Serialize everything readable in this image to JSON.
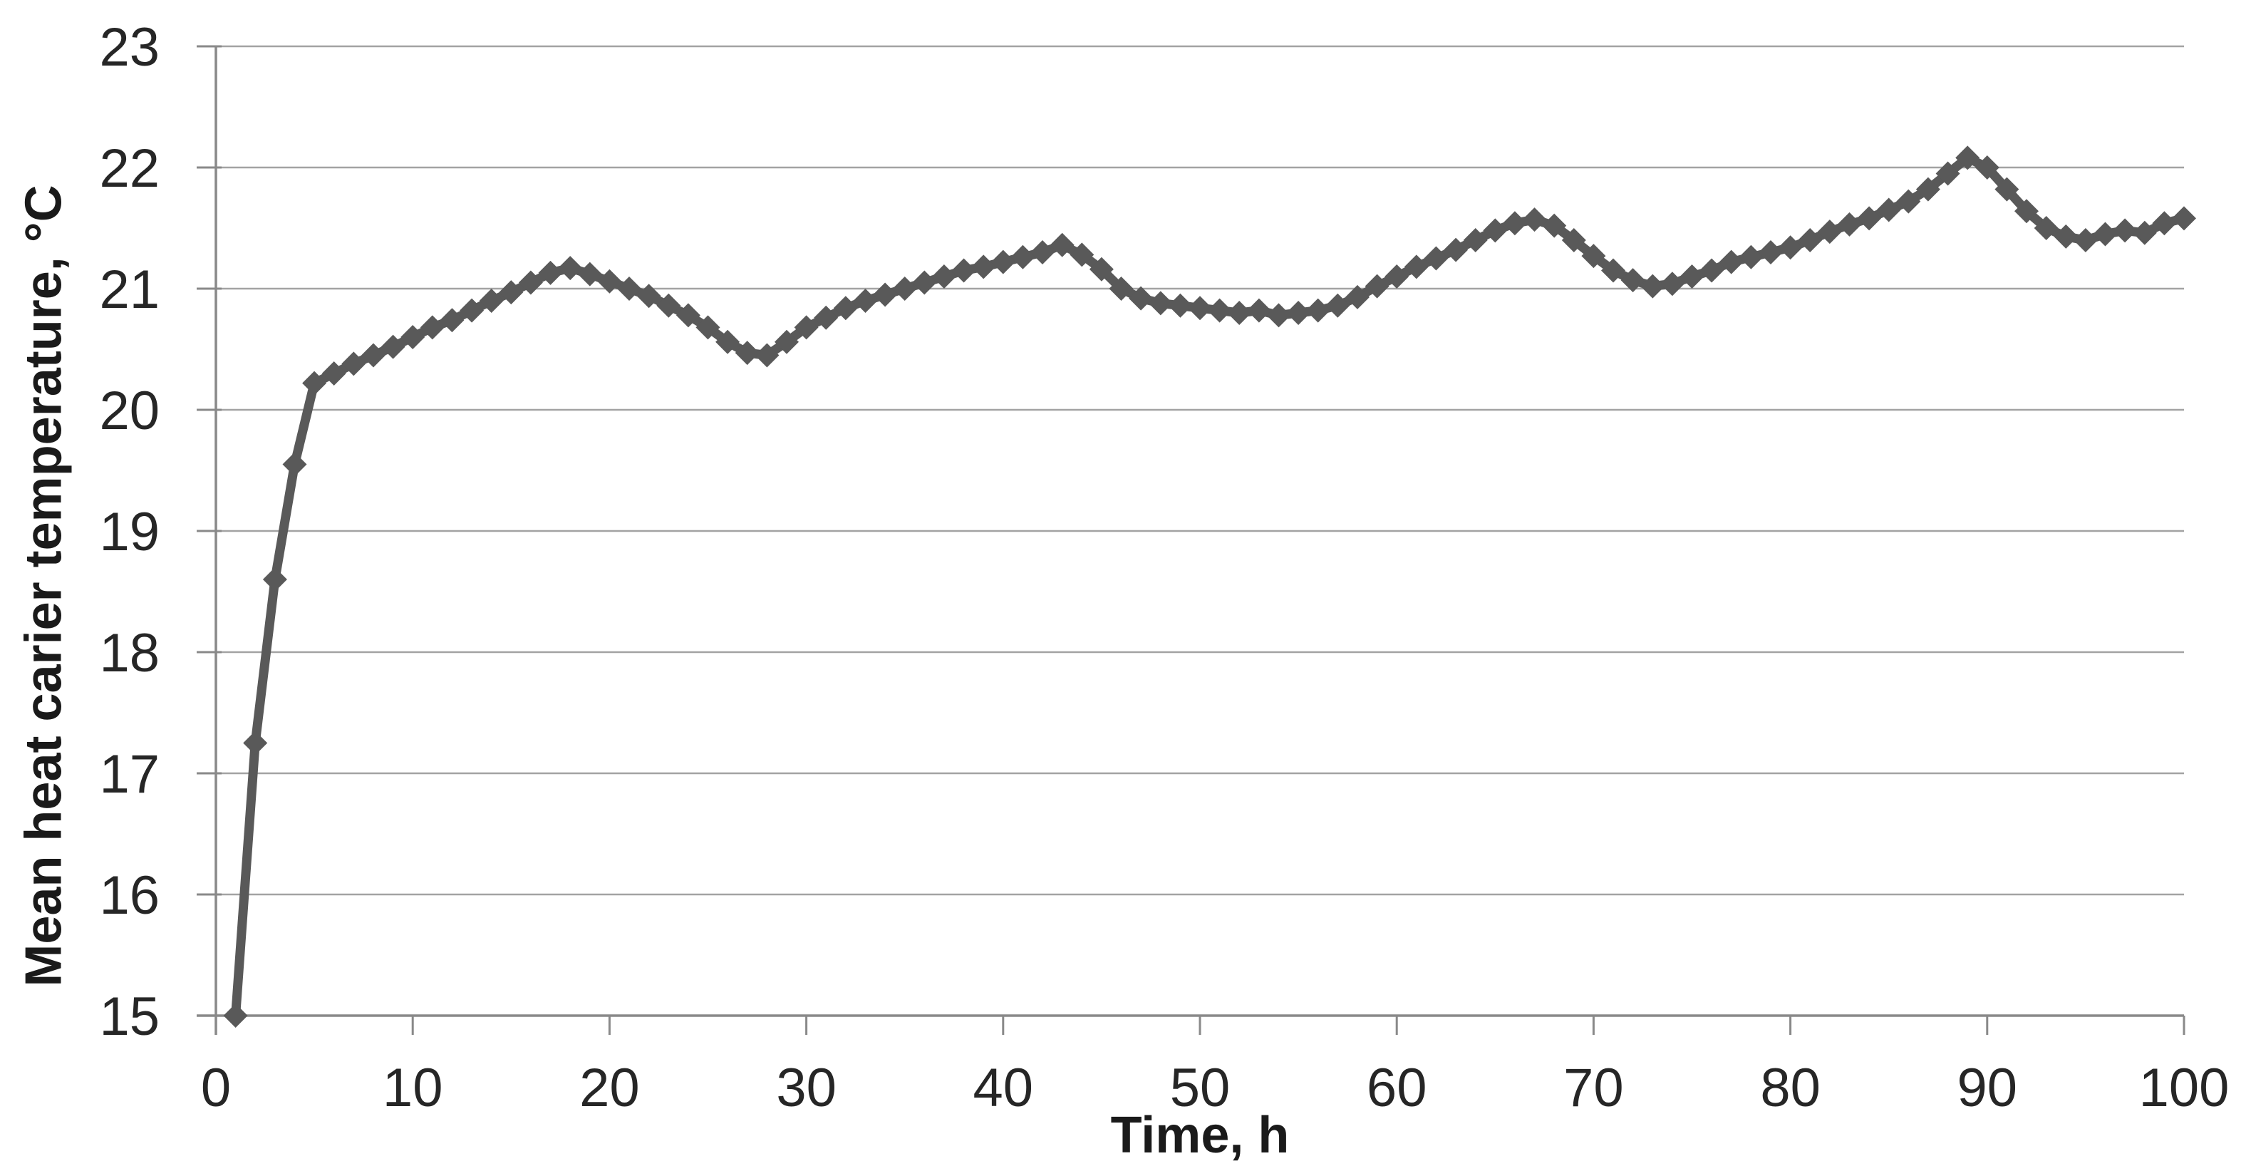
{
  "chart_data": {
    "type": "line",
    "title": "",
    "xlabel": "Time, h",
    "ylabel": "Mean heat carier temperature, °C",
    "xlim": [
      0,
      100
    ],
    "ylim": [
      15,
      23
    ],
    "x_ticks": [
      0,
      10,
      20,
      30,
      40,
      50,
      60,
      70,
      80,
      90,
      100
    ],
    "y_ticks": [
      15,
      16,
      17,
      18,
      19,
      20,
      21,
      22,
      23
    ],
    "grid": "horizontal-gridlines-on",
    "legend_position": "none",
    "series": [
      {
        "name": "Mean heat carrier temperature",
        "marker": "diamond",
        "color": "#595959",
        "x": [
          1,
          2,
          3,
          4,
          5,
          6,
          7,
          8,
          9,
          10,
          11,
          12,
          13,
          14,
          15,
          16,
          17,
          18,
          19,
          20,
          21,
          22,
          23,
          24,
          25,
          26,
          27,
          28,
          29,
          30,
          31,
          32,
          33,
          34,
          35,
          36,
          37,
          38,
          39,
          40,
          41,
          42,
          43,
          44,
          45,
          46,
          47,
          48,
          49,
          50,
          51,
          52,
          53,
          54,
          55,
          56,
          57,
          58,
          59,
          60,
          61,
          62,
          63,
          64,
          65,
          66,
          67,
          68,
          69,
          70,
          71,
          72,
          73,
          74,
          75,
          76,
          77,
          78,
          79,
          80,
          81,
          82,
          83,
          84,
          85,
          86,
          87,
          88,
          89,
          90,
          91,
          92,
          93,
          94,
          95,
          96,
          97,
          98,
          99,
          100
        ],
        "y": [
          15.0,
          17.25,
          18.6,
          19.55,
          20.22,
          20.3,
          20.38,
          20.45,
          20.52,
          20.6,
          20.68,
          20.74,
          20.82,
          20.9,
          20.97,
          21.05,
          21.13,
          21.17,
          21.12,
          21.06,
          21.0,
          20.94,
          20.86,
          20.78,
          20.68,
          20.56,
          20.47,
          20.45,
          20.56,
          20.68,
          20.76,
          20.84,
          20.9,
          20.95,
          21.0,
          21.05,
          21.1,
          21.15,
          21.18,
          21.22,
          21.26,
          21.3,
          21.36,
          21.28,
          21.16,
          21.0,
          20.92,
          20.88,
          20.86,
          20.84,
          20.82,
          20.8,
          20.82,
          20.78,
          20.8,
          20.82,
          20.86,
          20.93,
          21.02,
          21.1,
          21.18,
          21.25,
          21.32,
          21.4,
          21.48,
          21.54,
          21.57,
          21.52,
          21.4,
          21.27,
          21.15,
          21.07,
          21.02,
          21.04,
          21.1,
          21.15,
          21.22,
          21.26,
          21.3,
          21.34,
          21.4,
          21.47,
          21.53,
          21.58,
          21.65,
          21.72,
          21.82,
          21.95,
          22.08,
          22.0,
          21.82,
          21.64,
          21.5,
          21.43,
          21.4,
          21.45,
          21.48,
          21.46,
          21.54,
          21.58
        ]
      }
    ]
  },
  "colors": {
    "series": "#595959",
    "gridline": "#a3a3a3",
    "axis": "#898989",
    "tick_text": "#262626",
    "title_text": "#1a1a1a",
    "background": "#ffffff"
  }
}
